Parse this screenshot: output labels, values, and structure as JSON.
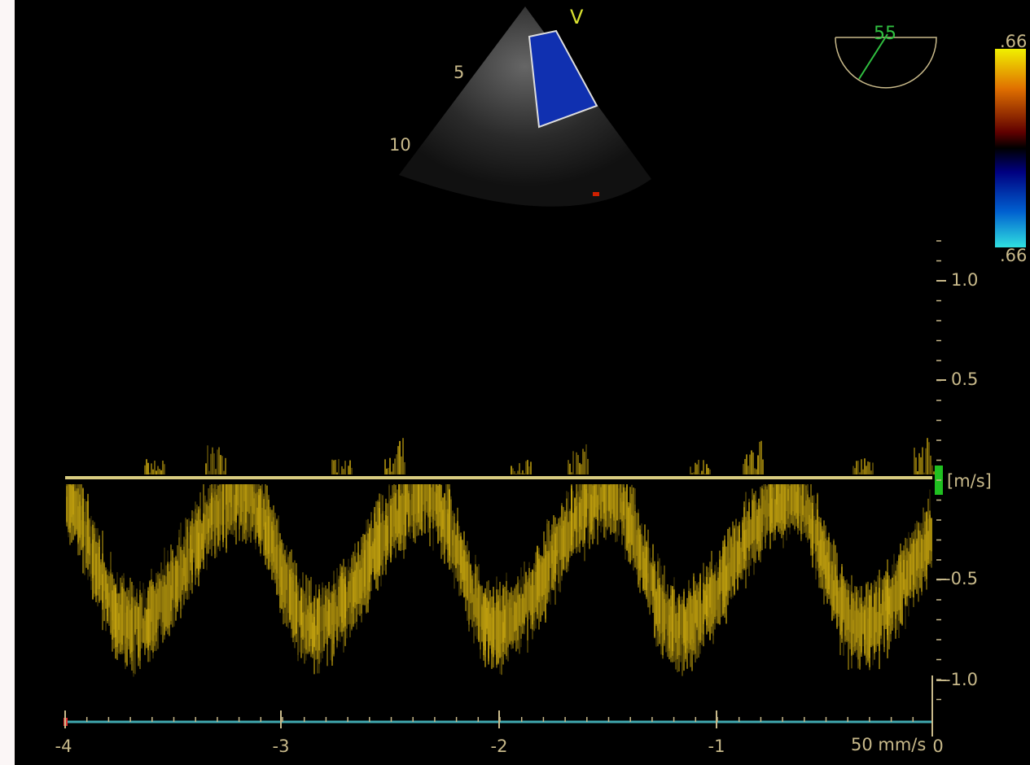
{
  "header_marker": "V",
  "depth_labels": [
    "5",
    "10"
  ],
  "angle": "55",
  "color_scale": {
    "max": ".66",
    "min": ".66"
  },
  "velocity_axis": {
    "labels": [
      "1.0",
      "0.5",
      "[m/s]",
      "-0.5",
      "-1.0"
    ]
  },
  "time_axis": {
    "labels": [
      "-4",
      "-3",
      "-2",
      "-1",
      "0"
    ],
    "sweep_speed": "50 mm/s"
  }
}
